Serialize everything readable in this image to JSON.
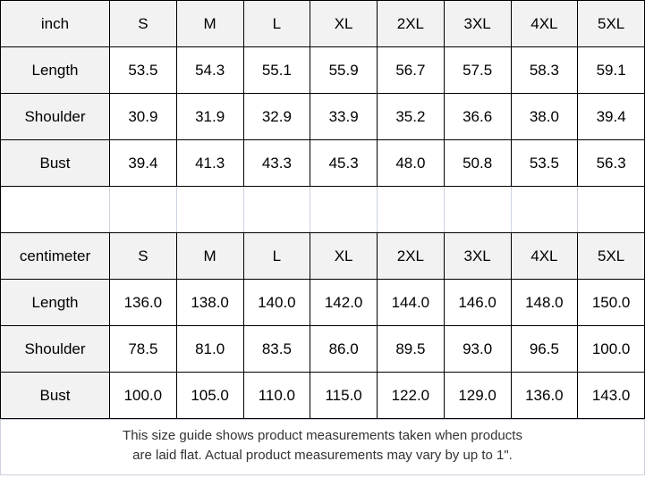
{
  "colors": {
    "header_bg": "#f2f2f2",
    "border_dark": "#000000",
    "border_light": "#ccd3df",
    "footer_text": "#333333"
  },
  "chart_data": [
    {
      "type": "table",
      "unit_label": "inch",
      "columns": [
        "S",
        "M",
        "L",
        "XL",
        "2XL",
        "3XL",
        "4XL",
        "5XL"
      ],
      "rows": [
        {
          "label": "Length",
          "values": [
            "53.5",
            "54.3",
            "55.1",
            "55.9",
            "56.7",
            "57.5",
            "58.3",
            "59.1"
          ]
        },
        {
          "label": "Shoulder",
          "values": [
            "30.9",
            "31.9",
            "32.9",
            "33.9",
            "35.2",
            "36.6",
            "38.0",
            "39.4"
          ]
        },
        {
          "label": "Bust",
          "values": [
            "39.4",
            "41.3",
            "43.3",
            "45.3",
            "48.0",
            "50.8",
            "53.5",
            "56.3"
          ]
        }
      ]
    },
    {
      "type": "table",
      "unit_label": "centimeter",
      "columns": [
        "S",
        "M",
        "L",
        "XL",
        "2XL",
        "3XL",
        "4XL",
        "5XL"
      ],
      "rows": [
        {
          "label": "Length",
          "values": [
            "136.0",
            "138.0",
            "140.0",
            "142.0",
            "144.0",
            "146.0",
            "148.0",
            "150.0"
          ]
        },
        {
          "label": "Shoulder",
          "values": [
            "78.5",
            "81.0",
            "83.5",
            "86.0",
            "89.5",
            "93.0",
            "96.5",
            "100.0"
          ]
        },
        {
          "label": "Bust",
          "values": [
            "100.0",
            "105.0",
            "110.0",
            "115.0",
            "122.0",
            "129.0",
            "136.0",
            "143.0"
          ]
        }
      ]
    }
  ],
  "footer": {
    "note_line1": "This size guide shows product measurements taken when products",
    "note_line2": "are laid flat. Actual product measurements may vary by up to 1\"."
  }
}
